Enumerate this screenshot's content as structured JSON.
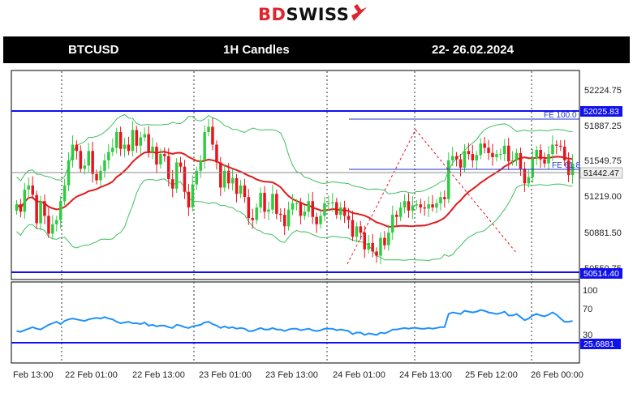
{
  "logo": {
    "prefix": "BD",
    "suffix": "SWISS",
    "accent_color": "#e0242f"
  },
  "header": {
    "symbol": "BTCUSD",
    "timeframe": "1H Candles",
    "dates": "22- 26.02.2024"
  },
  "chart_data": {
    "type": "candlestick",
    "price_axis": {
      "ticks": [
        52224.75,
        51887.25,
        51549.75,
        51219.0,
        50881.5,
        50550.75
      ],
      "tick_labels": [
        "52224.75",
        "51887.25",
        "51549.75",
        "51219.00",
        "50881.50",
        "50550.75"
      ],
      "ylim": [
        50440,
        52420
      ]
    },
    "levels": [
      {
        "label": "52025.83",
        "value": 52025.83,
        "style": "blue-box"
      },
      {
        "label": "51442.47",
        "value": 51442.47,
        "style": "grey-box"
      },
      {
        "label": "50514.40",
        "value": 50514.4,
        "style": "blue-box"
      }
    ],
    "fib_labels": [
      "FE 100.0",
      "FE 61.8"
    ],
    "x_labels": [
      "Feb 13:00",
      "22 Feb 01:00",
      "22 Feb 13:00",
      "23 Feb 01:00",
      "23 Feb 13:00",
      "24 Feb 01:00",
      "24 Feb 13:00",
      "25 Feb 12:00",
      "26 Feb 00:00"
    ],
    "candles": {
      "count": 140,
      "closes": [
        51150,
        51080,
        51290,
        51330,
        51240,
        50970,
        51180,
        51040,
        50870,
        50960,
        51000,
        51180,
        51330,
        51570,
        51720,
        51660,
        51490,
        51520,
        51660,
        51440,
        51380,
        51470,
        51570,
        51650,
        51690,
        51840,
        51680,
        51720,
        51660,
        51860,
        51710,
        51790,
        51820,
        51650,
        51700,
        51530,
        51630,
        51610,
        51390,
        51300,
        51550,
        51510,
        51270,
        51120,
        51340,
        51470,
        51570,
        51840,
        51890,
        51720,
        51550,
        51310,
        51470,
        51350,
        51400,
        51250,
        51330,
        51220,
        51020,
        51000,
        51120,
        51260,
        51080,
        51100,
        51250,
        51060,
        51050,
        50940,
        51100,
        51160,
        51160,
        51040,
        51080,
        51180,
        51030,
        50960,
        51040,
        51160,
        51160,
        51170,
        51050,
        51120,
        51040,
        51000,
        50840,
        50940,
        50880,
        50720,
        50780,
        50700,
        50660,
        50830,
        50760,
        50880,
        51050,
        51030,
        51120,
        51180,
        51090,
        51140,
        51150,
        51120,
        51110,
        51150,
        51120,
        51160,
        51220,
        51200,
        51570,
        51610,
        51580,
        51500,
        51660,
        51630,
        51570,
        51620,
        51730,
        51690,
        51640,
        51600,
        51630,
        51630,
        51710,
        51560,
        51570,
        51640,
        51490,
        51350,
        51410,
        51590,
        51670,
        51580,
        51540,
        51630,
        51720,
        51710,
        51700,
        51570,
        51430,
        51540
      ],
      "colors": {
        "up": "#2ecc40",
        "down": "#e5141d"
      }
    },
    "indicators": [
      {
        "name": "moving-average",
        "color": "#e11b1b"
      },
      {
        "name": "bollinger-bands",
        "color": "#3fbf5f"
      }
    ],
    "oscillator": {
      "ticks": [
        100,
        70,
        30
      ],
      "tick_labels": [
        "100",
        "70",
        "30"
      ],
      "level_label": "25.6881",
      "level_value": 25.6881,
      "line_color": "#1e90ff",
      "values": [
        40,
        39,
        41,
        43,
        45,
        43,
        42,
        45,
        48,
        50,
        52,
        49,
        53,
        55,
        56,
        55,
        54,
        53,
        55,
        56,
        57,
        56,
        58,
        56,
        55,
        52,
        50,
        51,
        52,
        50,
        50,
        49,
        51,
        47,
        48,
        46,
        47,
        47,
        45,
        44,
        48,
        47,
        45,
        44,
        46,
        47,
        48,
        51,
        52,
        49,
        47,
        44,
        46,
        44,
        45,
        43,
        44,
        43,
        40,
        40,
        42,
        44,
        42,
        42,
        44,
        42,
        42,
        40,
        42,
        43,
        43,
        41,
        42,
        43,
        41,
        40,
        41,
        43,
        43,
        43,
        41,
        42,
        41,
        40,
        36,
        38,
        38,
        35,
        37,
        36,
        35,
        38,
        37,
        39,
        42,
        42,
        43,
        44,
        43,
        44,
        44,
        43,
        43,
        44,
        43,
        44,
        45,
        45,
        62,
        64,
        63,
        62,
        66,
        65,
        64,
        65,
        67,
        66,
        64,
        63,
        62,
        63,
        65,
        60,
        60,
        62,
        58,
        54,
        56,
        60,
        62,
        60,
        59,
        61,
        64,
        61,
        56,
        52,
        52,
        53
      ]
    }
  }
}
